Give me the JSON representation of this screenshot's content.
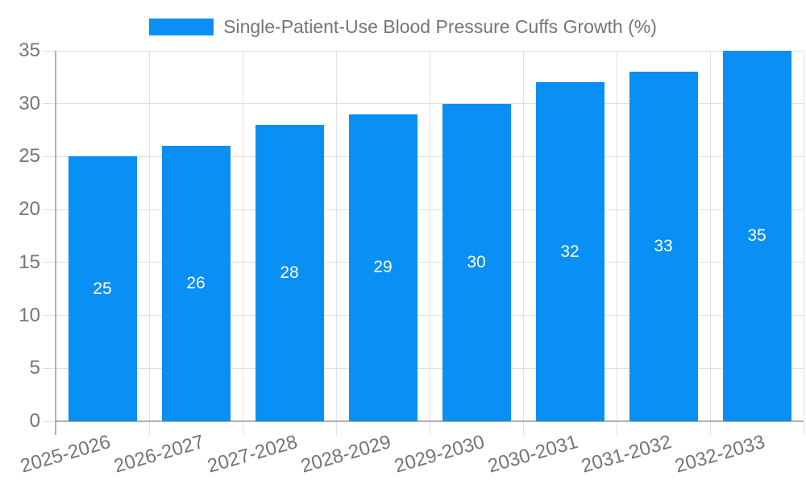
{
  "legend": {
    "label": "Single-Patient-Use Blood Pressure Cuffs Growth (%)"
  },
  "chart_data": {
    "type": "bar",
    "title": "Single-Patient-Use Blood Pressure Cuffs Growth (%)",
    "categories": [
      "2025-2026",
      "2026-2027",
      "2027-2028",
      "2028-2029",
      "2029-2030",
      "2030-2031",
      "2031-2032",
      "2032-2033"
    ],
    "values": [
      25,
      26,
      28,
      29,
      30,
      32,
      33,
      35
    ],
    "bar_value_labels": [
      "25",
      "26",
      "28",
      "29",
      "30",
      "32",
      "33",
      "35"
    ],
    "ytick_labels": [
      "0",
      "5",
      "10",
      "15",
      "20",
      "25",
      "30",
      "35"
    ],
    "yticks": [
      0,
      5,
      10,
      15,
      20,
      25,
      30,
      35
    ],
    "ylim": [
      0,
      35
    ],
    "xlabel": "",
    "ylabel": "",
    "grid": true,
    "legend_position": "top",
    "colors": {
      "bar": "#0A8FF5",
      "value_label_text": "#FFFFFF",
      "tick_label_text": "#757575",
      "grid": "#E0E0E0",
      "axis": "#B0B0B0"
    }
  }
}
